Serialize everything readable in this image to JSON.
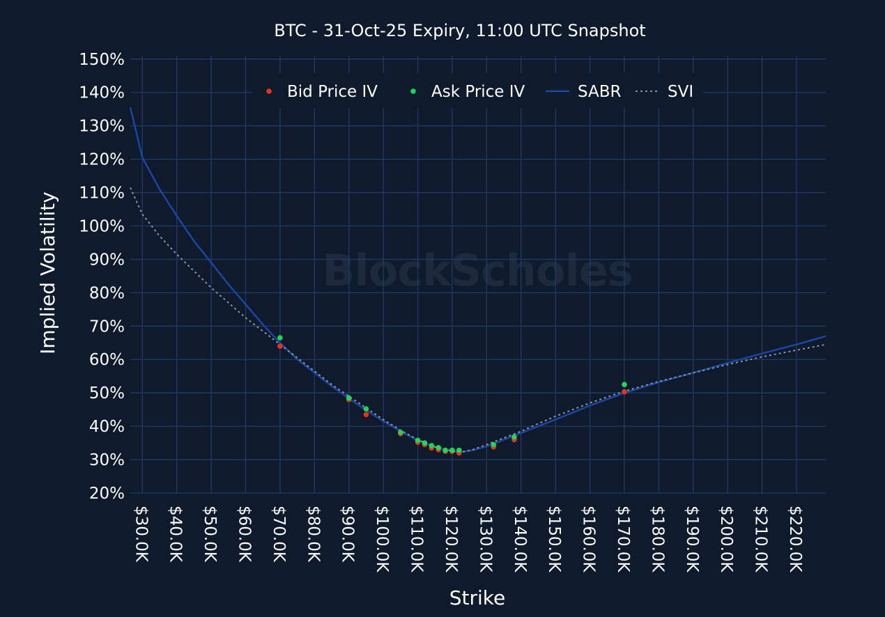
{
  "chart_data": {
    "type": "scatter",
    "title": "BTC - 31-Oct-25 Expiry, 11:00 UTC Snapshot",
    "xlabel": "Strike",
    "ylabel": "Implied Volatility",
    "watermark": "BlockScholes",
    "xlim": [
      26500,
      228500
    ],
    "ylim": [
      20,
      151
    ],
    "xticks": [
      30000,
      40000,
      50000,
      60000,
      70000,
      80000,
      90000,
      100000,
      110000,
      120000,
      130000,
      140000,
      150000,
      160000,
      170000,
      180000,
      190000,
      200000,
      210000,
      220000
    ],
    "xtick_labels": [
      "$30.0K",
      "$40.0K",
      "$50.0K",
      "$60.0K",
      "$70.0K",
      "$80.0K",
      "$90.0K",
      "$100.0K",
      "$110.0K",
      "$120.0K",
      "$130.0K",
      "$140.0K",
      "$150.0K",
      "$160.0K",
      "$170.0K",
      "$180.0K",
      "$190.0K",
      "$200.0K",
      "$210.0K",
      "$220.0K"
    ],
    "yticks": [
      20,
      30,
      40,
      50,
      60,
      70,
      80,
      90,
      100,
      110,
      120,
      130,
      140,
      150
    ],
    "ytick_labels": [
      "20%",
      "30%",
      "40%",
      "50%",
      "60%",
      "70%",
      "80%",
      "90%",
      "100%",
      "110%",
      "120%",
      "130%",
      "140%",
      "150%"
    ],
    "grid": true,
    "legend_position": "top-center",
    "series": [
      {
        "name": "Bid Price IV",
        "kind": "scatter",
        "color": "#e8321e",
        "points": [
          [
            70000,
            64
          ],
          [
            90000,
            48
          ],
          [
            95000,
            43.5
          ],
          [
            105000,
            37.8
          ],
          [
            110000,
            35.2
          ],
          [
            112000,
            34.5
          ],
          [
            114000,
            33.5
          ],
          [
            116000,
            33
          ],
          [
            118000,
            32.5
          ],
          [
            120000,
            32.5
          ],
          [
            122000,
            32
          ],
          [
            132000,
            33.8
          ],
          [
            138000,
            36
          ],
          [
            170000,
            50.3
          ]
        ]
      },
      {
        "name": "Ask Price IV",
        "kind": "scatter",
        "color": "#1fd655",
        "points": [
          [
            70000,
            66.5
          ],
          [
            90000,
            48.5
          ],
          [
            95000,
            45.2
          ],
          [
            105000,
            38.2
          ],
          [
            110000,
            35.8
          ],
          [
            112000,
            35
          ],
          [
            114000,
            34.2
          ],
          [
            116000,
            33.6
          ],
          [
            118000,
            32.8
          ],
          [
            120000,
            32.8
          ],
          [
            122000,
            32.8
          ],
          [
            132000,
            34.5
          ],
          [
            138000,
            36.8
          ],
          [
            170000,
            52.5
          ]
        ]
      },
      {
        "name": "SABR",
        "kind": "line",
        "color": "#1848a8",
        "points": [
          [
            26500,
            135.5
          ],
          [
            30000,
            120.5
          ],
          [
            35000,
            111
          ],
          [
            40000,
            103
          ],
          [
            45000,
            95.5
          ],
          [
            50000,
            89
          ],
          [
            55000,
            82.5
          ],
          [
            60000,
            76.5
          ],
          [
            65000,
            70.5
          ],
          [
            70000,
            65
          ],
          [
            75000,
            60
          ],
          [
            80000,
            56
          ],
          [
            85000,
            52
          ],
          [
            90000,
            48.3
          ],
          [
            95000,
            44.8
          ],
          [
            100000,
            41.5
          ],
          [
            105000,
            38.5
          ],
          [
            110000,
            35.8
          ],
          [
            115000,
            33.8
          ],
          [
            120000,
            32.5
          ],
          [
            123000,
            32.3
          ],
          [
            126000,
            32.8
          ],
          [
            130000,
            34
          ],
          [
            135000,
            36
          ],
          [
            140000,
            38
          ],
          [
            145000,
            40
          ],
          [
            150000,
            42
          ],
          [
            160000,
            46.2
          ],
          [
            170000,
            50
          ],
          [
            180000,
            53.2
          ],
          [
            190000,
            56
          ],
          [
            200000,
            59
          ],
          [
            210000,
            61.8
          ],
          [
            220000,
            64.5
          ],
          [
            228500,
            67
          ]
        ]
      },
      {
        "name": "SVI",
        "kind": "line",
        "dash": true,
        "color": "#8f949b",
        "points": [
          [
            26500,
            111.5
          ],
          [
            30000,
            103.5
          ],
          [
            35000,
            97
          ],
          [
            40000,
            91.5
          ],
          [
            45000,
            86.5
          ],
          [
            50000,
            81.5
          ],
          [
            55000,
            77
          ],
          [
            60000,
            72.5
          ],
          [
            65000,
            68.5
          ],
          [
            70000,
            64.5
          ],
          [
            75000,
            60.5
          ],
          [
            80000,
            56.5
          ],
          [
            85000,
            52.5
          ],
          [
            90000,
            49
          ],
          [
            95000,
            45.5
          ],
          [
            100000,
            42
          ],
          [
            105000,
            38.8
          ],
          [
            110000,
            36
          ],
          [
            115000,
            33.8
          ],
          [
            120000,
            32.6
          ],
          [
            123000,
            32.4
          ],
          [
            126000,
            33
          ],
          [
            130000,
            34.5
          ],
          [
            135000,
            36.5
          ],
          [
            140000,
            38.5
          ],
          [
            145000,
            40.8
          ],
          [
            150000,
            43
          ],
          [
            160000,
            47
          ],
          [
            170000,
            50.5
          ],
          [
            180000,
            53.4
          ],
          [
            190000,
            56
          ],
          [
            200000,
            58.5
          ],
          [
            210000,
            60.8
          ],
          [
            220000,
            62.8
          ],
          [
            228500,
            64.5
          ]
        ]
      }
    ]
  }
}
